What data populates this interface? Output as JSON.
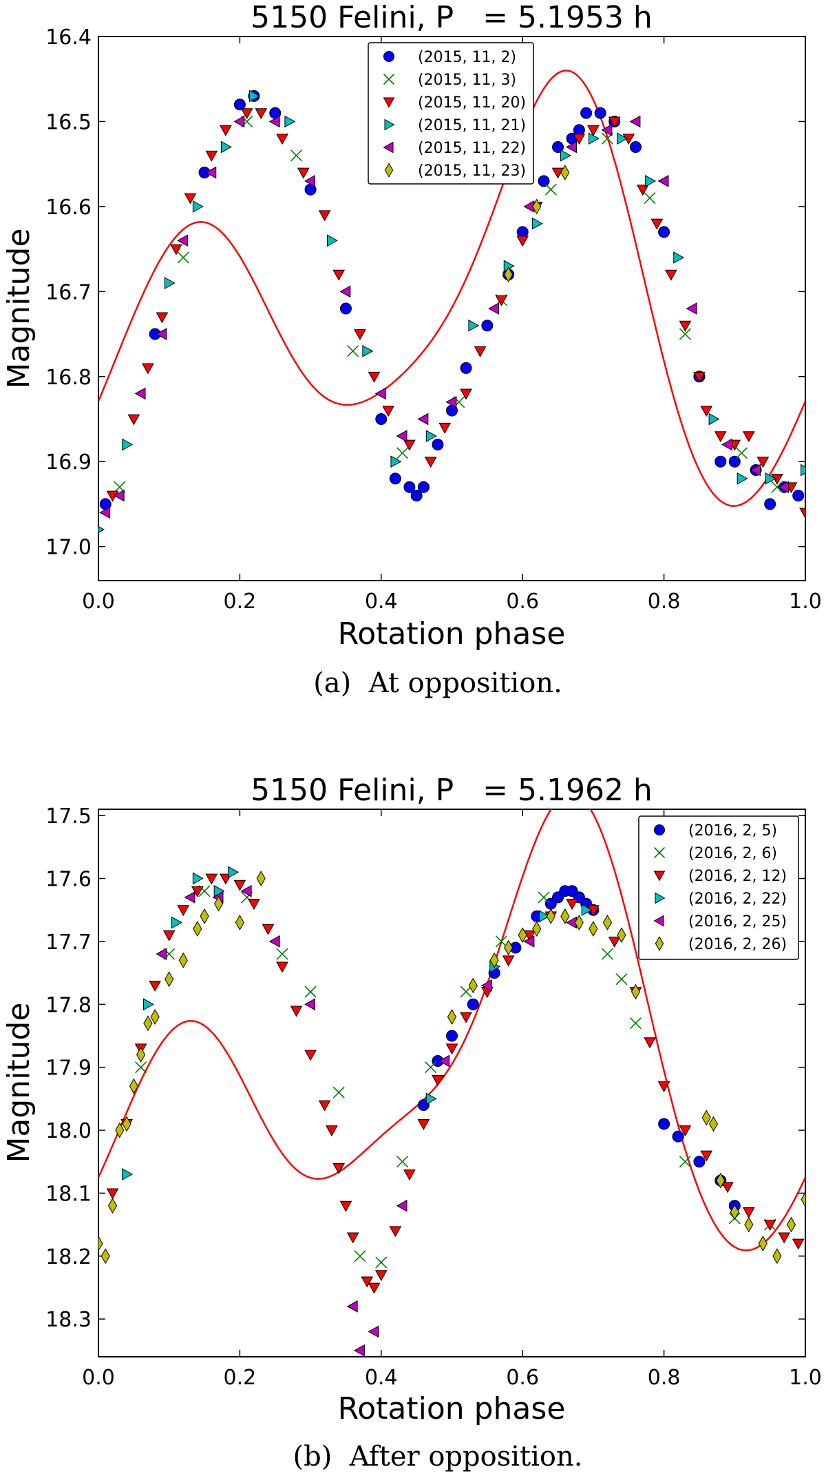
{
  "chart_data": [
    {
      "type": "scatter",
      "title": "5150 Felini, P   = 5.1953 h",
      "xlabel": "Rotation phase",
      "ylabel": "Magnitude",
      "caption": "(a)  At opposition.",
      "xlim": [
        0.0,
        1.0
      ],
      "ylim": [
        16.4,
        17.04
      ],
      "y_inverted": true,
      "xticks": [
        "0.0",
        "0.2",
        "0.4",
        "0.6",
        "0.8",
        "1.0"
      ],
      "xtick_values": [
        0.0,
        0.2,
        0.4,
        0.6,
        0.8,
        1.0
      ],
      "yticks": [
        "16.4",
        "16.5",
        "16.6",
        "16.7",
        "16.8",
        "16.9",
        "17.0"
      ],
      "ytick_values": [
        16.4,
        16.5,
        16.6,
        16.7,
        16.8,
        16.9,
        17.0
      ],
      "legend_position": "top-center",
      "fit_curve": {
        "color": "#ff0000",
        "mean": 16.72,
        "harmonics": [
          {
            "k": 1,
            "a": 0.075,
            "b": 0.04
          },
          {
            "k": 2,
            "a": 0.05,
            "b": -0.17
          },
          {
            "k": 3,
            "a": -0.02,
            "b": -0.025
          },
          {
            "k": 4,
            "a": 0.004,
            "b": 0.015
          }
        ]
      },
      "series": [
        {
          "name": "(2015, 11, 2)",
          "marker": "circle",
          "color": "#0000ff",
          "x": [
            0.01,
            0.08,
            0.15,
            0.2,
            0.22,
            0.25,
            0.3,
            0.35,
            0.4,
            0.42,
            0.44,
            0.45,
            0.46,
            0.48,
            0.5,
            0.52,
            0.55,
            0.58,
            0.6,
            0.63,
            0.65,
            0.67,
            0.68,
            0.69,
            0.71,
            0.73,
            0.76,
            0.8,
            0.85,
            0.88,
            0.9,
            0.93,
            0.95,
            0.97,
            0.99
          ],
          "y": [
            16.95,
            16.75,
            16.56,
            16.48,
            16.47,
            16.49,
            16.58,
            16.72,
            16.85,
            16.92,
            16.93,
            16.94,
            16.93,
            16.88,
            16.84,
            16.79,
            16.74,
            16.68,
            16.63,
            16.57,
            16.53,
            16.52,
            16.51,
            16.49,
            16.49,
            16.5,
            16.53,
            16.63,
            16.8,
            16.9,
            16.9,
            16.91,
            16.95,
            16.93,
            16.94
          ]
        },
        {
          "name": "(2015, 11, 3)",
          "marker": "x",
          "color": "#008000",
          "x": [
            0.03,
            0.12,
            0.21,
            0.28,
            0.36,
            0.43,
            0.51,
            0.57,
            0.64,
            0.72,
            0.78,
            0.83,
            0.91,
            0.96
          ],
          "y": [
            16.93,
            16.66,
            16.5,
            16.54,
            16.77,
            16.89,
            16.83,
            16.71,
            16.58,
            16.52,
            16.59,
            16.75,
            16.89,
            16.93
          ]
        },
        {
          "name": "(2015, 11, 20)",
          "marker": "tri-down",
          "color": "#ff0000",
          "x": [
            0.02,
            0.05,
            0.07,
            0.09,
            0.11,
            0.13,
            0.16,
            0.18,
            0.21,
            0.23,
            0.26,
            0.29,
            0.32,
            0.34,
            0.37,
            0.39,
            0.41,
            0.44,
            0.47,
            0.49,
            0.52,
            0.54,
            0.57,
            0.6,
            0.62,
            0.65,
            0.68,
            0.7,
            0.73,
            0.75,
            0.77,
            0.79,
            0.81,
            0.83,
            0.85,
            0.86,
            0.88,
            0.9,
            0.92,
            0.94,
            0.96,
            0.98,
            1.0
          ],
          "y": [
            16.94,
            16.85,
            16.79,
            16.73,
            16.65,
            16.59,
            16.54,
            16.51,
            16.49,
            16.49,
            16.52,
            16.56,
            16.61,
            16.68,
            16.75,
            16.8,
            16.84,
            16.88,
            16.9,
            16.86,
            16.82,
            16.77,
            16.71,
            16.64,
            16.6,
            16.56,
            16.52,
            16.51,
            16.5,
            16.52,
            16.58,
            16.62,
            16.68,
            16.74,
            16.8,
            16.84,
            16.87,
            16.88,
            16.87,
            16.9,
            16.92,
            16.93,
            16.96
          ]
        },
        {
          "name": "(2015, 11, 21)",
          "marker": "tri-right",
          "color": "#00bfbf",
          "x": [
            0.0,
            0.04,
            0.1,
            0.14,
            0.18,
            0.22,
            0.27,
            0.33,
            0.38,
            0.42,
            0.47,
            0.53,
            0.58,
            0.62,
            0.66,
            0.7,
            0.74,
            0.78,
            0.82,
            0.87,
            0.91,
            0.95,
            1.0
          ],
          "y": [
            16.98,
            16.88,
            16.69,
            16.6,
            16.53,
            16.47,
            16.5,
            16.64,
            16.77,
            16.9,
            16.87,
            16.74,
            16.67,
            16.62,
            16.54,
            16.52,
            16.52,
            16.57,
            16.66,
            16.85,
            16.92,
            16.92,
            16.91
          ]
        },
        {
          "name": "(2015, 11, 22)",
          "marker": "tri-left",
          "color": "#bf00bf",
          "x": [
            0.01,
            0.03,
            0.06,
            0.09,
            0.12,
            0.16,
            0.2,
            0.25,
            0.3,
            0.35,
            0.4,
            0.43,
            0.46,
            0.5,
            0.56,
            0.61,
            0.67,
            0.72,
            0.76,
            0.8,
            0.84,
            0.89,
            0.93,
            0.97
          ],
          "y": [
            16.96,
            16.94,
            16.82,
            16.75,
            16.64,
            16.56,
            16.5,
            16.5,
            16.57,
            16.7,
            16.82,
            16.87,
            16.85,
            16.83,
            16.72,
            16.6,
            16.53,
            16.51,
            16.5,
            16.57,
            16.72,
            16.88,
            16.91,
            16.93
          ]
        },
        {
          "name": "(2015, 11, 23)",
          "marker": "diamond",
          "color": "#bfbf00",
          "x": [
            0.58,
            0.62,
            0.66
          ],
          "y": [
            16.68,
            16.6,
            16.56
          ]
        }
      ]
    },
    {
      "type": "scatter",
      "title": "5150 Felini, P   = 5.1962 h",
      "xlabel": "Rotation phase",
      "ylabel": "Magnitude",
      "caption": "(b)  After opposition.",
      "xlim": [
        0.0,
        1.0
      ],
      "ylim": [
        17.49,
        18.36
      ],
      "y_inverted": true,
      "xticks": [
        "0.0",
        "0.2",
        "0.4",
        "0.6",
        "0.8",
        "1.0"
      ],
      "xtick_values": [
        0.0,
        0.2,
        0.4,
        0.6,
        0.8,
        1.0
      ],
      "yticks": [
        "17.5",
        "17.6",
        "17.7",
        "17.8",
        "17.9",
        "18.0",
        "18.1",
        "18.2",
        "18.3"
      ],
      "ytick_values": [
        17.5,
        17.6,
        17.7,
        17.8,
        17.9,
        18.0,
        18.1,
        18.2,
        18.3
      ],
      "legend_position": "top-right",
      "fit_curve": {
        "color": "#ff0000",
        "mean": 17.9,
        "harmonics": [
          {
            "k": 1,
            "a": 0.12,
            "b": 0.12
          },
          {
            "k": 2,
            "a": 0.07,
            "b": -0.21
          },
          {
            "k": 3,
            "a": -0.03,
            "b": -0.055
          },
          {
            "k": 4,
            "a": 0.015,
            "b": 0.02
          }
        ]
      },
      "series": [
        {
          "name": "(2016, 2, 5)",
          "marker": "circle",
          "color": "#0000ff",
          "x": [
            0.46,
            0.48,
            0.5,
            0.53,
            0.56,
            0.59,
            0.62,
            0.64,
            0.65,
            0.66,
            0.67,
            0.68,
            0.69,
            0.7,
            0.8,
            0.82,
            0.85,
            0.88,
            0.9
          ],
          "y": [
            17.96,
            17.89,
            17.85,
            17.8,
            17.75,
            17.71,
            17.66,
            17.64,
            17.63,
            17.62,
            17.62,
            17.63,
            17.64,
            17.65,
            17.99,
            18.01,
            18.05,
            18.08,
            18.12
          ]
        },
        {
          "name": "(2016, 2, 6)",
          "marker": "x",
          "color": "#008000",
          "x": [
            0.06,
            0.1,
            0.15,
            0.21,
            0.26,
            0.3,
            0.34,
            0.37,
            0.4,
            0.43,
            0.47,
            0.52,
            0.57,
            0.63,
            0.72,
            0.74,
            0.76,
            0.83,
            0.9,
            0.95
          ],
          "y": [
            17.9,
            17.72,
            17.62,
            17.63,
            17.72,
            17.78,
            17.94,
            18.2,
            18.21,
            18.05,
            17.9,
            17.78,
            17.7,
            17.63,
            17.72,
            17.76,
            17.83,
            18.05,
            18.14,
            18.15
          ]
        },
        {
          "name": "(2016, 2, 12)",
          "marker": "tri-down",
          "color": "#ff0000",
          "x": [
            0.02,
            0.04,
            0.06,
            0.08,
            0.1,
            0.12,
            0.14,
            0.16,
            0.18,
            0.2,
            0.22,
            0.24,
            0.26,
            0.28,
            0.3,
            0.32,
            0.33,
            0.34,
            0.35,
            0.36,
            0.38,
            0.39,
            0.4,
            0.42,
            0.44,
            0.46,
            0.48,
            0.5,
            0.52,
            0.55,
            0.58,
            0.61,
            0.64,
            0.67,
            0.7,
            0.73,
            0.76,
            0.78,
            0.8,
            0.83,
            0.86,
            0.89,
            0.92,
            0.95,
            0.97,
            0.99
          ],
          "y": [
            18.1,
            17.99,
            17.87,
            17.77,
            17.69,
            17.65,
            17.62,
            17.6,
            17.6,
            17.61,
            17.64,
            17.68,
            17.74,
            17.81,
            17.88,
            17.96,
            18.0,
            18.06,
            18.12,
            18.17,
            18.24,
            18.25,
            18.23,
            18.16,
            18.07,
            17.99,
            17.92,
            17.87,
            17.82,
            17.78,
            17.73,
            17.69,
            17.66,
            17.64,
            17.65,
            17.7,
            17.78,
            17.86,
            17.93,
            18.0,
            18.04,
            18.09,
            18.13,
            18.15,
            18.17,
            18.18
          ]
        },
        {
          "name": "(2016, 2, 22)",
          "marker": "tri-right",
          "color": "#00bfbf",
          "x": [
            0.04,
            0.07,
            0.11,
            0.14,
            0.17,
            0.19,
            0.47,
            0.56,
            0.63,
            0.69
          ],
          "y": [
            18.07,
            17.8,
            17.67,
            17.6,
            17.62,
            17.59,
            17.95,
            17.74,
            17.66,
            17.65
          ]
        },
        {
          "name": "(2016, 2, 25)",
          "marker": "tri-left",
          "color": "#bf00bf",
          "x": [
            0.09,
            0.13,
            0.17,
            0.21,
            0.25,
            0.3,
            0.36,
            0.37,
            0.39,
            0.43,
            0.49,
            0.55,
            0.61,
            0.67
          ],
          "y": [
            17.72,
            17.63,
            17.63,
            17.62,
            17.7,
            17.8,
            18.28,
            18.35,
            18.32,
            18.12,
            17.89,
            17.77,
            17.7,
            17.67
          ]
        },
        {
          "name": "(2016, 2, 26)",
          "marker": "diamond",
          "color": "#bfbf00",
          "x": [
            0.0,
            0.01,
            0.02,
            0.03,
            0.04,
            0.05,
            0.06,
            0.07,
            0.08,
            0.1,
            0.12,
            0.14,
            0.15,
            0.17,
            0.2,
            0.23,
            0.5,
            0.53,
            0.56,
            0.58,
            0.6,
            0.62,
            0.64,
            0.66,
            0.68,
            0.7,
            0.72,
            0.74,
            0.76,
            0.86,
            0.87,
            0.88,
            0.9,
            0.92,
            0.94,
            0.96,
            0.98,
            1.0
          ],
          "y": [
            18.18,
            18.2,
            18.12,
            18.0,
            17.99,
            17.93,
            17.88,
            17.83,
            17.82,
            17.76,
            17.73,
            17.68,
            17.66,
            17.64,
            17.67,
            17.6,
            17.82,
            17.77,
            17.73,
            17.71,
            17.69,
            17.68,
            17.66,
            17.66,
            17.67,
            17.68,
            17.67,
            17.69,
            17.78,
            17.98,
            17.99,
            18.08,
            18.13,
            18.15,
            18.18,
            18.2,
            18.15,
            18.11
          ]
        }
      ]
    }
  ]
}
